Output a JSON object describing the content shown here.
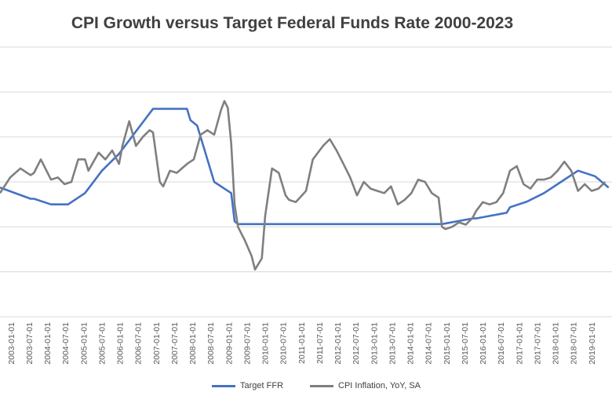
{
  "chart_data": {
    "type": "line",
    "title": "CPI Growth versus Target Federal Funds Rate 2000-2023",
    "xlabel": "",
    "ylabel": "",
    "grid": true,
    "legend": "bottom",
    "colors": {
      "Target FFR": "#4472c4",
      "CPI Inflation, YoY, SA": "#7f7f7f"
    },
    "x_tick_labels": [
      "2003-01-01",
      "2003-07-01",
      "2004-01-01",
      "2004-07-01",
      "2005-01-01",
      "2005-07-01",
      "2006-01-01",
      "2006-07-01",
      "2007-01-01",
      "2007-07-01",
      "2008-01-01",
      "2008-07-01",
      "2009-01-01",
      "2009-07-01",
      "2010-01-01",
      "2010-07-01",
      "2011-01-01",
      "2011-07-01",
      "2012-01-01",
      "2012-07-01",
      "2013-01-01",
      "2013-07-01",
      "2014-01-01",
      "2014-07-01",
      "2015-01-01",
      "2015-07-01",
      "2016-01-01",
      "2016-07-01",
      "2017-01-01",
      "2017-07-01",
      "2018-01-01",
      "2018-07-01",
      "2019-01-01"
    ],
    "series": [
      {
        "name": "Target FFR",
        "x": [
          2002.0,
          2002.9,
          2003.0,
          2003.5,
          2004.0,
          2004.5,
          2005.0,
          2005.5,
          2006.0,
          2006.5,
          2007.0,
          2007.5,
          2007.6,
          2007.8,
          2008.0,
          2008.1,
          2008.3,
          2008.8,
          2008.9,
          2009.0,
          2014.0,
          2015.0,
          2015.9,
          2016.0,
          2016.9,
          2017.0,
          2017.5,
          2018.0,
          2018.5,
          2019.0,
          2019.5,
          2019.9
        ],
        "y": [
          1.75,
          1.25,
          1.25,
          1.0,
          1.0,
          1.5,
          2.5,
          3.25,
          4.25,
          5.25,
          5.25,
          5.25,
          4.75,
          4.5,
          3.5,
          3.0,
          2.0,
          1.5,
          0.25,
          0.125,
          0.125,
          0.125,
          0.375,
          0.375,
          0.625,
          0.875,
          1.125,
          1.5,
          2.0,
          2.5,
          2.25,
          1.75
        ]
      },
      {
        "name": "CPI Inflation, YoY, SA",
        "x": [
          2002.0,
          2002.3,
          2002.6,
          2002.9,
          2003.0,
          2003.2,
          2003.5,
          2003.7,
          2003.9,
          2004.1,
          2004.3,
          2004.5,
          2004.6,
          2004.9,
          2005.1,
          2005.3,
          2005.5,
          2005.6,
          2005.8,
          2006.0,
          2006.2,
          2006.4,
          2006.5,
          2006.7,
          2006.8,
          2007.0,
          2007.2,
          2007.5,
          2007.7,
          2007.9,
          2008.1,
          2008.3,
          2008.5,
          2008.6,
          2008.7,
          2008.8,
          2008.9,
          2009.0,
          2009.2,
          2009.4,
          2009.5,
          2009.7,
          2009.8,
          2010.0,
          2010.2,
          2010.4,
          2010.5,
          2010.7,
          2011.0,
          2011.2,
          2011.5,
          2011.7,
          2011.9,
          2012.1,
          2012.3,
          2012.5,
          2012.7,
          2012.9,
          2013.1,
          2013.3,
          2013.5,
          2013.7,
          2013.9,
          2014.1,
          2014.3,
          2014.5,
          2014.7,
          2014.9,
          2015.0,
          2015.1,
          2015.3,
          2015.5,
          2015.7,
          2015.9,
          2016.0,
          2016.2,
          2016.4,
          2016.6,
          2016.8,
          2017.0,
          2017.2,
          2017.4,
          2017.6,
          2017.8,
          2018.0,
          2018.2,
          2018.4,
          2018.6,
          2018.8,
          2019.0,
          2019.2,
          2019.4,
          2019.6,
          2019.8
        ],
        "y": [
          1.5,
          2.2,
          2.6,
          2.3,
          2.4,
          3.0,
          2.1,
          2.2,
          1.9,
          2.0,
          3.0,
          3.0,
          2.5,
          3.3,
          3.0,
          3.4,
          2.8,
          3.6,
          4.7,
          3.6,
          4.0,
          4.3,
          4.2,
          2.0,
          1.8,
          2.5,
          2.4,
          2.8,
          3.0,
          4.1,
          4.3,
          4.1,
          5.2,
          5.6,
          5.3,
          3.7,
          1.0,
          0.0,
          -0.6,
          -1.3,
          -1.9,
          -1.4,
          0.5,
          2.6,
          2.4,
          1.4,
          1.2,
          1.1,
          1.6,
          3.0,
          3.6,
          3.9,
          3.4,
          2.8,
          2.2,
          1.4,
          2.0,
          1.7,
          1.6,
          1.5,
          1.8,
          1.0,
          1.2,
          1.5,
          2.1,
          2.0,
          1.5,
          1.3,
          0.0,
          -0.1,
          0.0,
          0.2,
          0.1,
          0.4,
          0.7,
          1.1,
          1.0,
          1.1,
          1.5,
          2.5,
          2.7,
          1.9,
          1.7,
          2.1,
          2.1,
          2.2,
          2.5,
          2.9,
          2.5,
          1.6,
          1.9,
          1.6,
          1.7,
          2.0
        ]
      }
    ],
    "xlim": [
      2002.0,
      2020.0
    ],
    "ylim": [
      -4,
      8
    ]
  }
}
